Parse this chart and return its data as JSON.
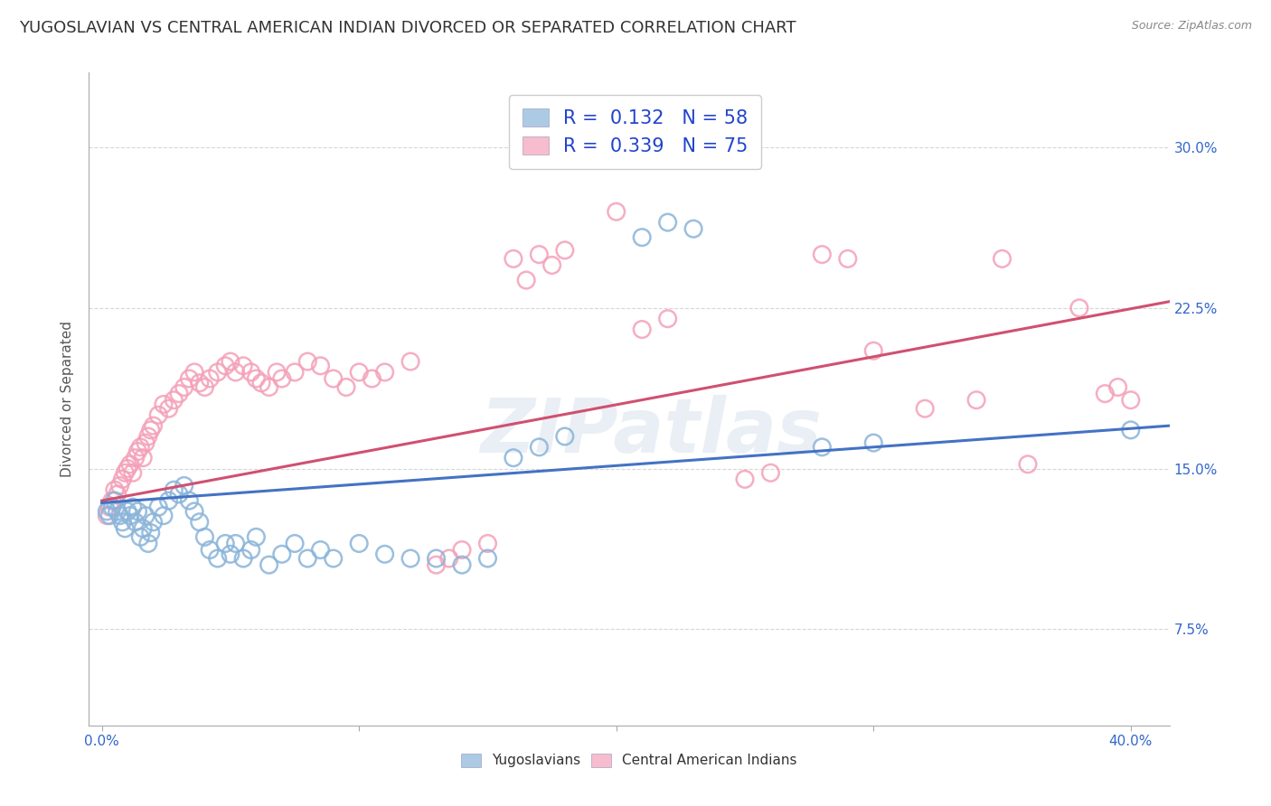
{
  "title": "YUGOSLAVIAN VS CENTRAL AMERICAN INDIAN DIVORCED OR SEPARATED CORRELATION CHART",
  "source": "Source: ZipAtlas.com",
  "ylabel": "Divorced or Separated",
  "xlabel_ticks": [
    "0.0%",
    "",
    "",
    "",
    "40.0%"
  ],
  "xlabel_vals": [
    0.0,
    0.1,
    0.2,
    0.3,
    0.4
  ],
  "ylabel_ticks": [
    "7.5%",
    "15.0%",
    "22.5%",
    "30.0%"
  ],
  "ylabel_vals": [
    0.075,
    0.15,
    0.225,
    0.3
  ],
  "xlim": [
    -0.005,
    0.415
  ],
  "ylim": [
    0.03,
    0.335
  ],
  "legend_label_blue": "R =  0.132   N = 58",
  "legend_label_pink": "R =  0.339   N = 75",
  "blue_color": "#8ab4d9",
  "pink_color": "#f4a0b8",
  "blue_face_color": "none",
  "pink_face_color": "none",
  "blue_line_color": "#4472c4",
  "pink_line_color": "#d05070",
  "watermark": "ZIPatlas",
  "blue_scatter": [
    [
      0.002,
      0.13
    ],
    [
      0.003,
      0.128
    ],
    [
      0.004,
      0.132
    ],
    [
      0.005,
      0.135
    ],
    [
      0.006,
      0.13
    ],
    [
      0.007,
      0.128
    ],
    [
      0.008,
      0.125
    ],
    [
      0.009,
      0.122
    ],
    [
      0.01,
      0.13
    ],
    [
      0.011,
      0.128
    ],
    [
      0.012,
      0.132
    ],
    [
      0.013,
      0.125
    ],
    [
      0.014,
      0.13
    ],
    [
      0.015,
      0.118
    ],
    [
      0.016,
      0.122
    ],
    [
      0.017,
      0.128
    ],
    [
      0.018,
      0.115
    ],
    [
      0.019,
      0.12
    ],
    [
      0.02,
      0.125
    ],
    [
      0.022,
      0.132
    ],
    [
      0.024,
      0.128
    ],
    [
      0.026,
      0.135
    ],
    [
      0.028,
      0.14
    ],
    [
      0.03,
      0.138
    ],
    [
      0.032,
      0.142
    ],
    [
      0.034,
      0.135
    ],
    [
      0.036,
      0.13
    ],
    [
      0.038,
      0.125
    ],
    [
      0.04,
      0.118
    ],
    [
      0.042,
      0.112
    ],
    [
      0.045,
      0.108
    ],
    [
      0.048,
      0.115
    ],
    [
      0.05,
      0.11
    ],
    [
      0.052,
      0.115
    ],
    [
      0.055,
      0.108
    ],
    [
      0.058,
      0.112
    ],
    [
      0.06,
      0.118
    ],
    [
      0.065,
      0.105
    ],
    [
      0.07,
      0.11
    ],
    [
      0.075,
      0.115
    ],
    [
      0.08,
      0.108
    ],
    [
      0.085,
      0.112
    ],
    [
      0.09,
      0.108
    ],
    [
      0.1,
      0.115
    ],
    [
      0.11,
      0.11
    ],
    [
      0.12,
      0.108
    ],
    [
      0.13,
      0.108
    ],
    [
      0.14,
      0.105
    ],
    [
      0.15,
      0.108
    ],
    [
      0.16,
      0.155
    ],
    [
      0.17,
      0.16
    ],
    [
      0.18,
      0.165
    ],
    [
      0.21,
      0.258
    ],
    [
      0.22,
      0.265
    ],
    [
      0.23,
      0.262
    ],
    [
      0.28,
      0.16
    ],
    [
      0.3,
      0.162
    ],
    [
      0.4,
      0.168
    ]
  ],
  "pink_scatter": [
    [
      0.002,
      0.128
    ],
    [
      0.003,
      0.132
    ],
    [
      0.004,
      0.135
    ],
    [
      0.005,
      0.14
    ],
    [
      0.006,
      0.138
    ],
    [
      0.007,
      0.142
    ],
    [
      0.008,
      0.145
    ],
    [
      0.009,
      0.148
    ],
    [
      0.01,
      0.15
    ],
    [
      0.011,
      0.152
    ],
    [
      0.012,
      0.148
    ],
    [
      0.013,
      0.155
    ],
    [
      0.014,
      0.158
    ],
    [
      0.015,
      0.16
    ],
    [
      0.016,
      0.155
    ],
    [
      0.017,
      0.162
    ],
    [
      0.018,
      0.165
    ],
    [
      0.019,
      0.168
    ],
    [
      0.02,
      0.17
    ],
    [
      0.022,
      0.175
    ],
    [
      0.024,
      0.18
    ],
    [
      0.026,
      0.178
    ],
    [
      0.028,
      0.182
    ],
    [
      0.03,
      0.185
    ],
    [
      0.032,
      0.188
    ],
    [
      0.034,
      0.192
    ],
    [
      0.036,
      0.195
    ],
    [
      0.038,
      0.19
    ],
    [
      0.04,
      0.188
    ],
    [
      0.042,
      0.192
    ],
    [
      0.045,
      0.195
    ],
    [
      0.048,
      0.198
    ],
    [
      0.05,
      0.2
    ],
    [
      0.052,
      0.195
    ],
    [
      0.055,
      0.198
    ],
    [
      0.058,
      0.195
    ],
    [
      0.06,
      0.192
    ],
    [
      0.062,
      0.19
    ],
    [
      0.065,
      0.188
    ],
    [
      0.068,
      0.195
    ],
    [
      0.07,
      0.192
    ],
    [
      0.075,
      0.195
    ],
    [
      0.08,
      0.2
    ],
    [
      0.085,
      0.198
    ],
    [
      0.09,
      0.192
    ],
    [
      0.095,
      0.188
    ],
    [
      0.1,
      0.195
    ],
    [
      0.105,
      0.192
    ],
    [
      0.11,
      0.195
    ],
    [
      0.12,
      0.2
    ],
    [
      0.13,
      0.105
    ],
    [
      0.135,
      0.108
    ],
    [
      0.14,
      0.112
    ],
    [
      0.15,
      0.115
    ],
    [
      0.16,
      0.248
    ],
    [
      0.165,
      0.238
    ],
    [
      0.17,
      0.25
    ],
    [
      0.175,
      0.245
    ],
    [
      0.18,
      0.252
    ],
    [
      0.2,
      0.27
    ],
    [
      0.21,
      0.215
    ],
    [
      0.22,
      0.22
    ],
    [
      0.25,
      0.145
    ],
    [
      0.26,
      0.148
    ],
    [
      0.28,
      0.25
    ],
    [
      0.29,
      0.248
    ],
    [
      0.3,
      0.205
    ],
    [
      0.32,
      0.178
    ],
    [
      0.34,
      0.182
    ],
    [
      0.35,
      0.248
    ],
    [
      0.36,
      0.152
    ],
    [
      0.38,
      0.225
    ],
    [
      0.39,
      0.185
    ],
    [
      0.395,
      0.188
    ],
    [
      0.4,
      0.182
    ]
  ],
  "blue_line": {
    "x": [
      0.0,
      0.415
    ],
    "y": [
      0.134,
      0.17
    ]
  },
  "pink_line": {
    "x": [
      0.0,
      0.415
    ],
    "y": [
      0.135,
      0.228
    ]
  },
  "background_color": "#ffffff",
  "grid_color": "#cccccc",
  "title_fontsize": 13,
  "axis_label_fontsize": 11,
  "tick_fontsize": 11,
  "watermark_color": "#c8d8e8",
  "watermark_alpha": 0.4,
  "legend_text_color": "#2244cc",
  "ytick_color": "#3366cc",
  "xtick_color": "#3366cc"
}
